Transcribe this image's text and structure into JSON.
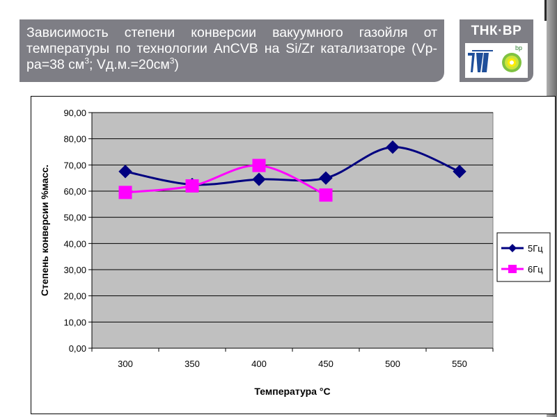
{
  "slide": {
    "title_main": "Зависимость степени конверсии вакуумного газойля от температуры по технологии AnCVB на Si/Zr катализаторе (Vр-ра=38 см",
    "title_sup1": "3",
    "title_mid": "; Vд.м.=20см",
    "title_sup2": "3",
    "title_end": ")",
    "logo_text": "ТНК·ВР",
    "logo_bp_text": "bp"
  },
  "colors": {
    "title_bg": "#7e7e85",
    "plot_bg": "#c0c0c0",
    "series_5": "#000080",
    "series_6": "#ff00ff"
  },
  "chart_data": {
    "type": "line",
    "xlabel": "Температура °С",
    "ylabel": "Степень конверсии %масс.",
    "categories": [
      "300",
      "350",
      "400",
      "450",
      "500",
      "550"
    ],
    "ylim": [
      0,
      90
    ],
    "yticks": [
      "0,00",
      "10,00",
      "20,00",
      "30,00",
      "40,00",
      "50,00",
      "60,00",
      "70,00",
      "80,00",
      "90,00"
    ],
    "grid": true,
    "legend_position": "right",
    "series": [
      {
        "name": "5Гц",
        "marker": "diamond",
        "values": [
          67.5,
          62.5,
          64.5,
          65.0,
          76.8,
          67.5
        ]
      },
      {
        "name": "6Гц",
        "marker": "square",
        "values": [
          59.5,
          62.0,
          69.8,
          58.5,
          null,
          null
        ]
      }
    ]
  }
}
